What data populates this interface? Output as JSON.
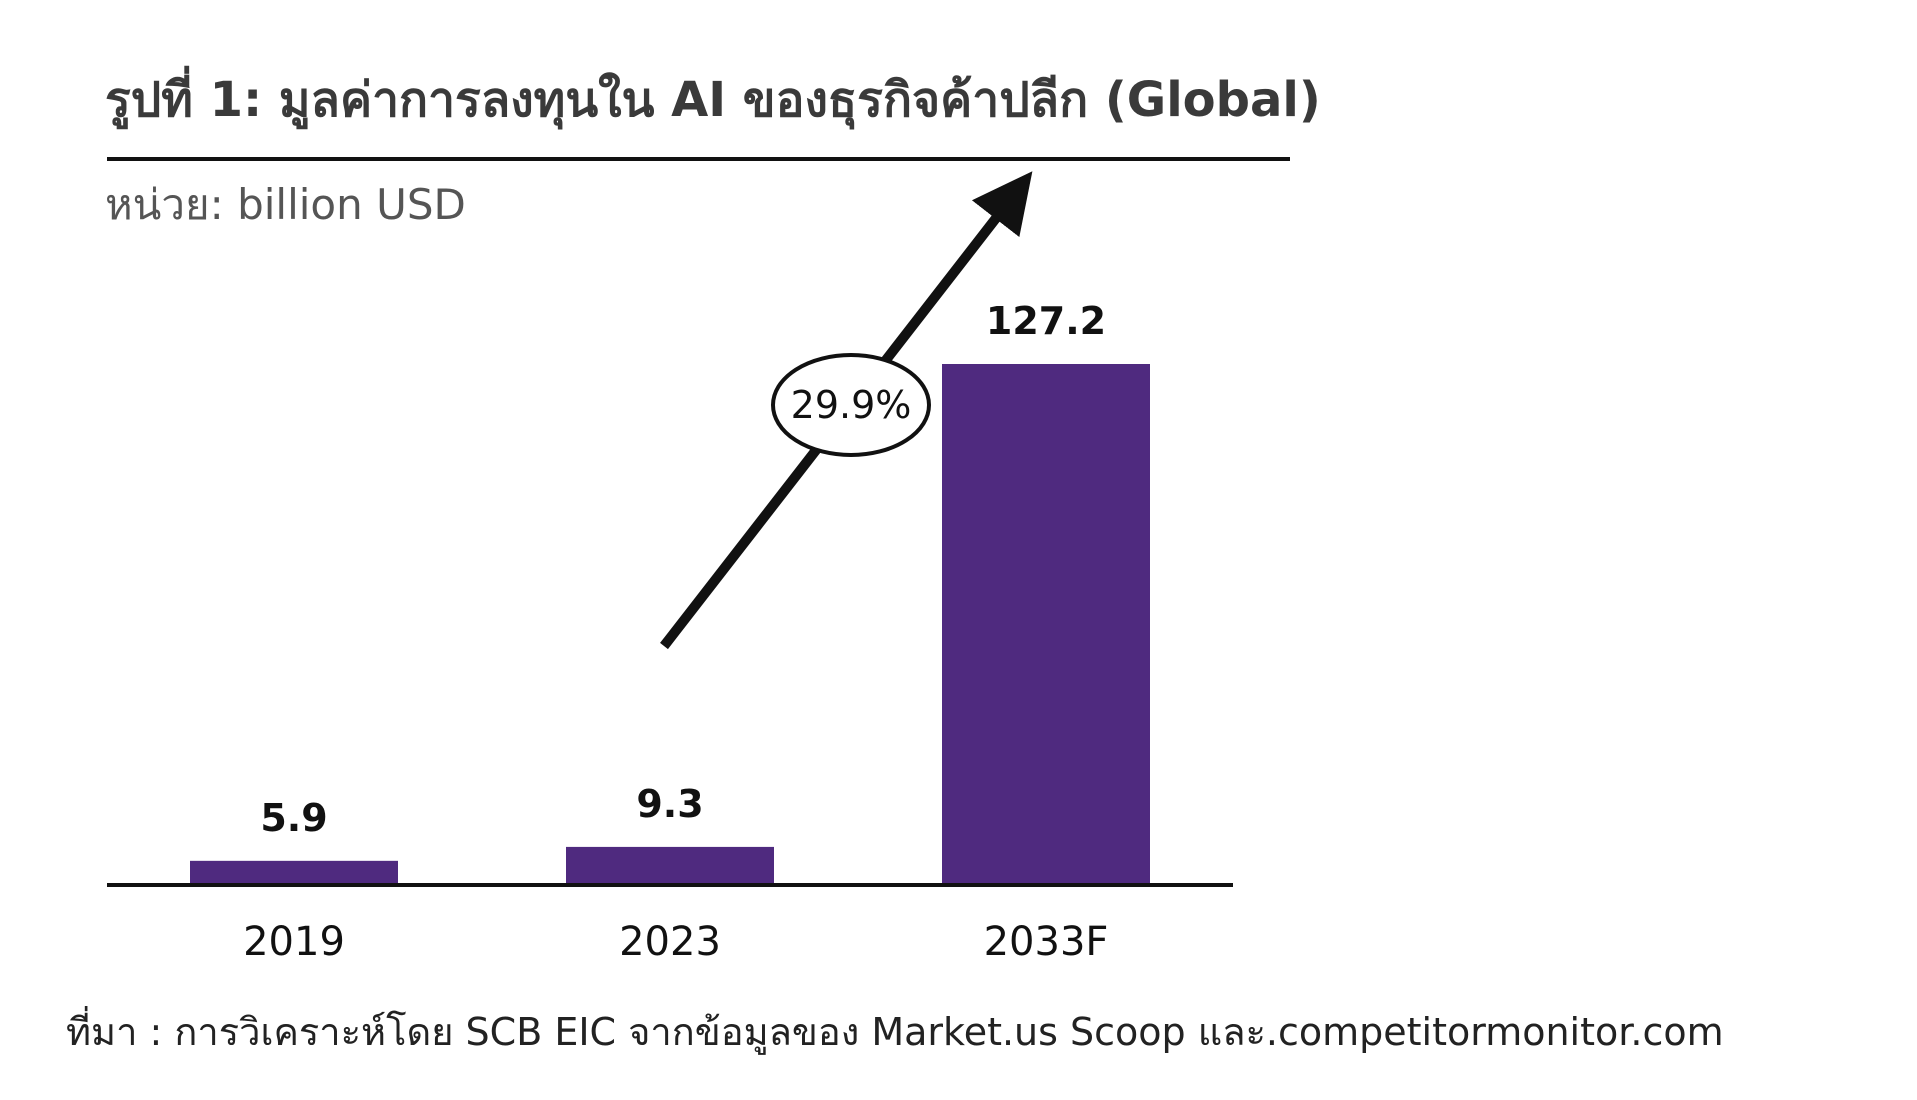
{
  "title": "รูปที่ 1: มูลค่าการลงทุนใน AI ของธุรกิจค้าปลีก (Global)",
  "unit_label": "หน่วย: billion USD",
  "source": "ที่มา : การวิเคราะห์โดย SCB EIC จากข้อมูลของ Market.us Scoop และ.competitormonitor.com",
  "colors": {
    "bar": "#4f2a7f",
    "axis": "#111111",
    "text": "#111111",
    "title": "#3a3a3a",
    "unit": "#555555"
  },
  "chart_data": {
    "type": "bar",
    "categories": [
      "2019",
      "2023",
      "2033F"
    ],
    "values": [
      5.9,
      9.3,
      127.2
    ],
    "data_labels": [
      "5.9",
      "9.3",
      "127.2"
    ],
    "ylim": [
      0,
      127.2
    ],
    "grid": false,
    "annotation": {
      "label": "29.9%",
      "type": "growth-arrow",
      "from_category": "2023",
      "to_category": "2033F"
    }
  }
}
